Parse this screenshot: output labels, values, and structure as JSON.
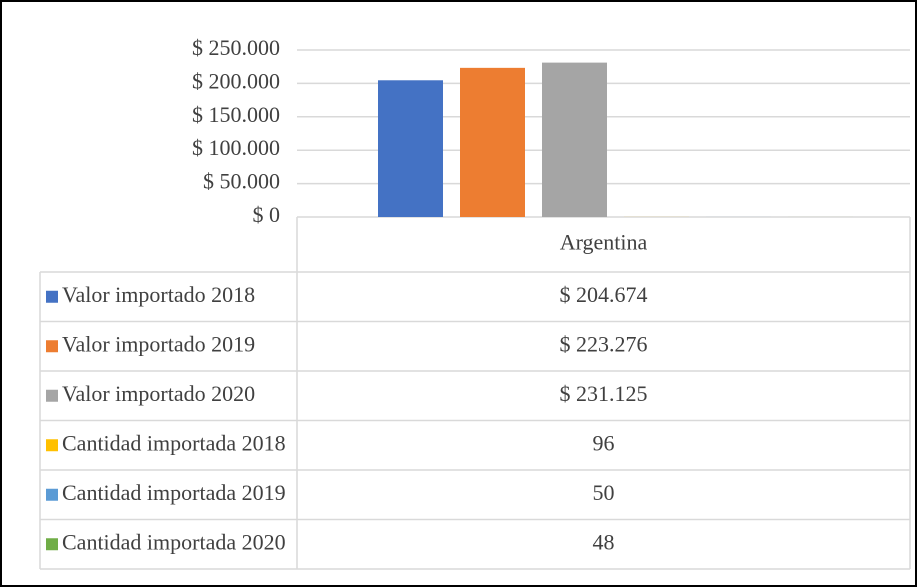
{
  "chart_data": {
    "type": "bar",
    "categories": [
      "Argentina"
    ],
    "series": [
      {
        "name": "Valor importado 2018",
        "color": "#4472c4",
        "values": [
          204674
        ],
        "value_labels": [
          "$ 204.674"
        ]
      },
      {
        "name": "Valor importado 2019",
        "color": "#ed7d31",
        "values": [
          223276
        ],
        "value_labels": [
          "$ 223.276"
        ]
      },
      {
        "name": "Valor importado 2020",
        "color": "#a5a5a5",
        "values": [
          231125
        ],
        "value_labels": [
          "$ 231.125"
        ]
      },
      {
        "name": "Cantidad importada 2018",
        "color": "#ffc000",
        "values": [
          96
        ]
      },
      {
        "name": "Cantidad importada 2019",
        "color": "#5b9bd5",
        "values": [
          50
        ]
      },
      {
        "name": "Cantidad importada 2020",
        "color": "#70ad47",
        "values": [
          48
        ]
      }
    ],
    "ylim": [
      0,
      250000
    ],
    "yticks": [
      {
        "value": 0,
        "label": "$ 0"
      },
      {
        "value": 50000,
        "label": "$ 50.000"
      },
      {
        "value": 100000,
        "label": "$ 100.000"
      },
      {
        "value": 150000,
        "label": "$ 150.000"
      },
      {
        "value": 200000,
        "label": "$ 200.000"
      },
      {
        "value": 250000,
        "label": "$ 250.000"
      }
    ],
    "grid": true,
    "legend": "table"
  }
}
